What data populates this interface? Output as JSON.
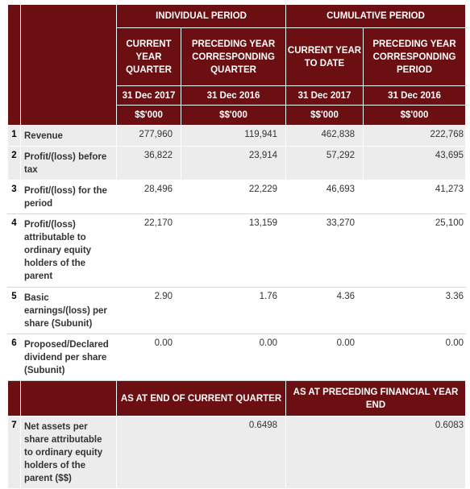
{
  "header": {
    "individual_period": "INDIVIDUAL PERIOD",
    "cumulative_period": "CUMULATIVE PERIOD",
    "col1_title": "CURRENT YEAR QUARTER",
    "col2_title": "PRECEDING YEAR CORRESPONDING QUARTER",
    "col3_title": "CURRENT YEAR TO DATE",
    "col4_title": "PRECEDING YEAR CORRESPONDING PERIOD",
    "col1_date": "31 Dec 2017",
    "col2_date": "31 Dec 2016",
    "col3_date": "31 Dec 2017",
    "col4_date": "31 Dec 2016",
    "col1_unit": "$$'000",
    "col2_unit": "$$'000",
    "col3_unit": "$$'000",
    "col4_unit": "$$'000"
  },
  "rows": [
    {
      "num": "1",
      "label": "Revenue",
      "v1": "277,960",
      "v2": "119,941",
      "v3": "462,838",
      "v4": "222,768"
    },
    {
      "num": "2",
      "label": "Profit/(loss) before tax",
      "v1": "36,822",
      "v2": "23,914",
      "v3": "57,292",
      "v4": "43,695"
    },
    {
      "num": "3",
      "label": "Profit/(loss) for the period",
      "v1": "28,496",
      "v2": "22,229",
      "v3": "46,693",
      "v4": "41,273"
    },
    {
      "num": "4",
      "label": "Profit/(loss) attributable to ordinary equity holders of the parent",
      "v1": "22,170",
      "v2": "13,159",
      "v3": "33,270",
      "v4": "25,100"
    },
    {
      "num": "5",
      "label": "Basic earnings/(loss) per share (Subunit)",
      "v1": "2.90",
      "v2": "1.76",
      "v3": "4.36",
      "v4": "3.36"
    },
    {
      "num": "6",
      "label": "Proposed/Declared dividend per share (Subunit)",
      "v1": "0.00",
      "v2": "0.00",
      "v3": "0.00",
      "v4": "0.00"
    }
  ],
  "lower": {
    "left_heading": "AS AT END OF CURRENT QUARTER",
    "right_heading": "AS AT PRECEDING FINANCIAL YEAR END",
    "row_num": "7",
    "row_label": "Net assets per share attributable to ordinary equity holders of the parent ($$)",
    "left_value": "0.6498",
    "right_value": "0.6083"
  }
}
